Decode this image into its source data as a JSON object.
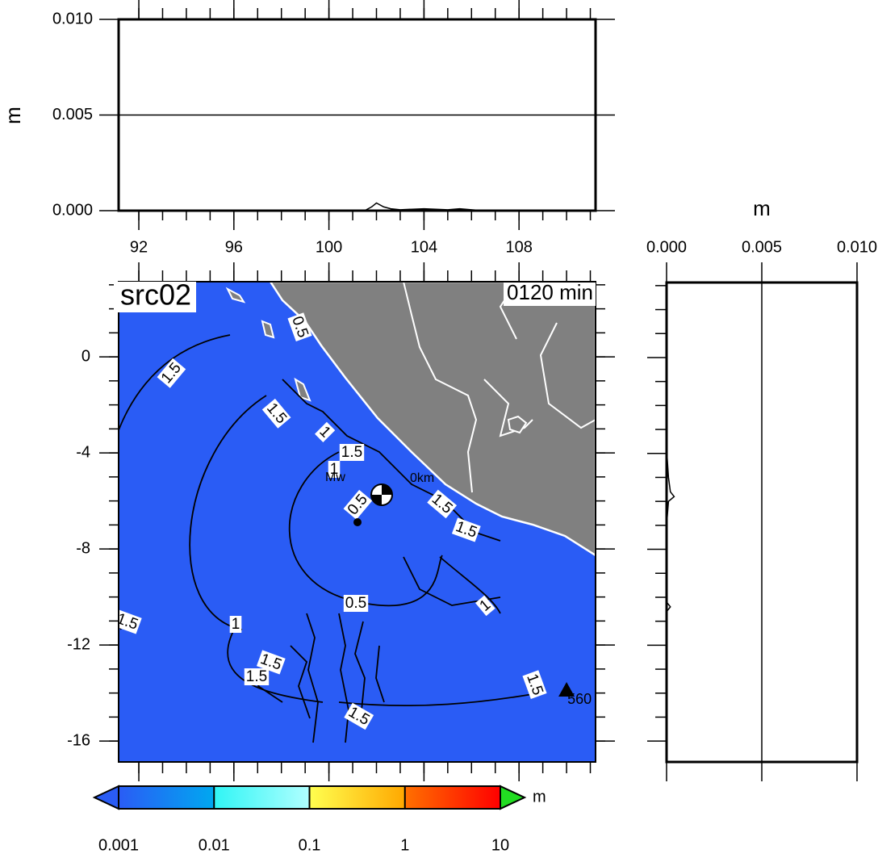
{
  "chart_data": [
    {
      "type": "line",
      "ylabel": "m",
      "xlim": [
        91.15,
        111.22
      ],
      "ylim": [
        0,
        0.01
      ],
      "xticks": [
        92,
        96,
        100,
        104,
        108
      ],
      "yticks": [
        {
          "value": 0,
          "label": "0.000"
        },
        {
          "value": 0.005,
          "label": "0.005"
        },
        {
          "value": 0.01,
          "label": "0.010"
        }
      ],
      "grid": true,
      "color": "#000000",
      "x": [
        91.15,
        101.5,
        101.8,
        102.0,
        102.3,
        102.6,
        103.0,
        104.0,
        105.0,
        105.5,
        106.0,
        106.5,
        111.22
      ],
      "values": [
        0,
        0,
        0.0002,
        0.0004,
        0.0002,
        0.0001,
        5e-05,
        0.0001,
        5e-05,
        0.0001,
        5e-05,
        0,
        0
      ]
    },
    {
      "type": "map",
      "title": "src02",
      "subtitle": "0120 min",
      "xlim": [
        91.15,
        111.22
      ],
      "ylim": [
        -16.87,
        3.13
      ],
      "xticks": [
        92,
        96,
        100,
        104,
        108
      ],
      "yticks": [
        0,
        -4,
        -8,
        -12,
        -16
      ],
      "sea_color": "#2a5cf5",
      "land_color": "#808080",
      "annotations": [
        "Mw",
        "0km"
      ],
      "contour_labels": [
        "1.5",
        "0.5",
        "1.5",
        "1",
        "1.5",
        "1",
        "0.5",
        "1.5",
        "1.5",
        "1",
        "0.5",
        "1.5",
        "1",
        "1.5",
        "1.5",
        "1.5",
        "1.5"
      ],
      "station": {
        "label": "560",
        "x": 110.0,
        "y": -13.88
      }
    },
    {
      "type": "profile",
      "xlabel": "m",
      "xlim": [
        0,
        0.01
      ],
      "ylim": [
        -16.87,
        3.13
      ],
      "xticks": [
        {
          "value": 0,
          "label": "0.000"
        },
        {
          "value": 0.005,
          "label": "0.005"
        },
        {
          "value": 0.01,
          "label": "0.010"
        }
      ],
      "grid": true,
      "color": "#000000",
      "y": [
        3.13,
        -3.8,
        -5.0,
        -5.6,
        -5.8,
        -6.0,
        -7.0,
        -10.2,
        -10.4,
        -10.6,
        -16.87
      ],
      "values": [
        0,
        0,
        0.0001,
        0.0002,
        0.0004,
        0.0001,
        0,
        0,
        0.0002,
        0,
        0
      ]
    },
    {
      "type": "colorbar",
      "label": "m",
      "log": true,
      "xlim": [
        0.001,
        10
      ],
      "xticks": [
        0.001,
        0.01,
        0.1,
        1,
        10
      ],
      "colors": [
        "#2a5cf5",
        "#00a8f0",
        "#30f5f5",
        "#b0ffff",
        "#ffff50",
        "#ffa800",
        "#ff7000",
        "#ff0000"
      ],
      "under_color": "#2a5cf5",
      "over_color": "#22dd22"
    }
  ]
}
